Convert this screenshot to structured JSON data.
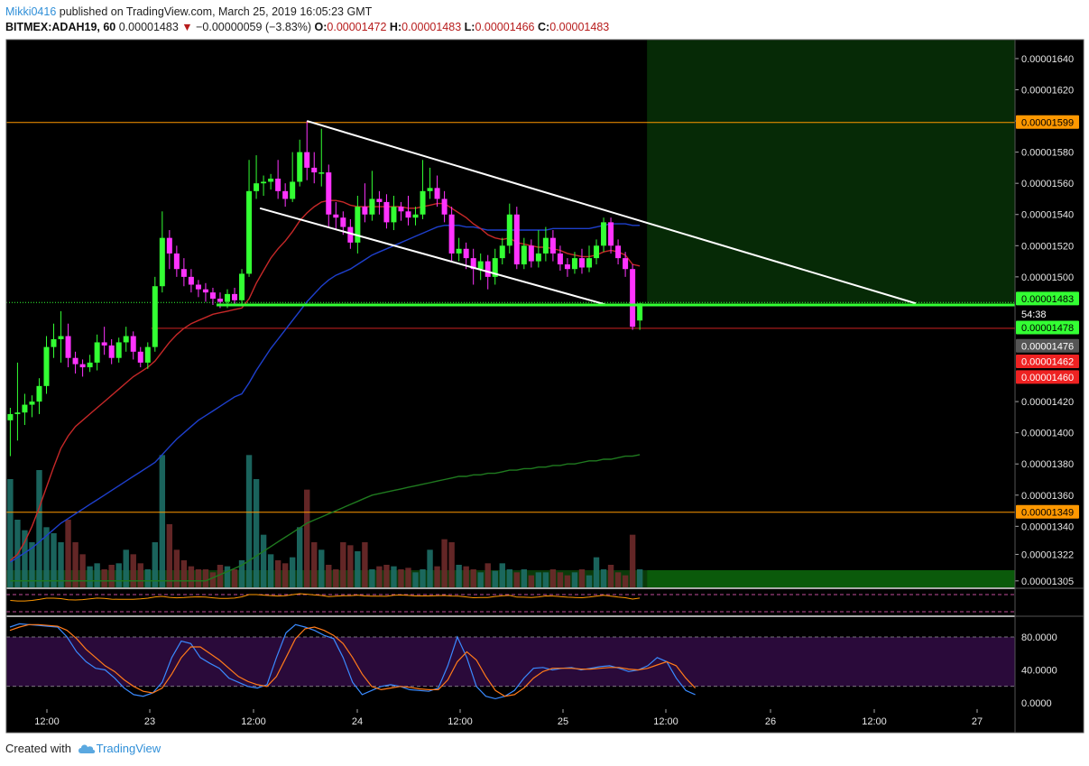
{
  "header": {
    "author": "Mikki0416",
    "published_text": " published on TradingView.com, March 25, 2019 16:05:23 GMT",
    "symbol": "BITMEX:ADAH19, 60",
    "last": "0.00001483",
    "change_arrow": "▼",
    "change": "−0.00000059 (−3.83%)",
    "o_label": "O:",
    "o_value": "0.00001472",
    "h_label": "H:",
    "h_value": "0.00001483",
    "l_label": "L:",
    "l_value": "0.00001466",
    "c_label": "C:",
    "c_value": "0.00001483"
  },
  "footer": {
    "created_text": "Created with",
    "brand": "TradingView",
    "logo_icon": "tradingview-cloud-icon"
  },
  "colors": {
    "bg": "#000000",
    "bull": "#33ff33",
    "bear": "#ff33ff",
    "ema_short": "#c62828",
    "ema_long": "#1e3fcc",
    "ema_slow": "#1f7a1f",
    "level_line": "#ff9800",
    "support_line": "#33ff33",
    "channel_line": "#ffffff",
    "target_zone": "#062a06",
    "stop_zone": "#3a0a0a",
    "stoch_fill": "#2a0a3a"
  },
  "price_axis": {
    "ticks": [
      "0.00001640",
      "0.00001620",
      "0.00001600",
      "0.00001580",
      "0.00001560",
      "0.00001540",
      "0.00001520",
      "0.00001500",
      "0.00001420",
      "0.00001400",
      "0.00001380",
      "0.00001360",
      "0.00001340",
      "0.00001322",
      "0.00001305"
    ],
    "badges": [
      {
        "label": "0.00001599",
        "value": 1.599,
        "bg": "#ff9800",
        "fg": "#000000"
      },
      {
        "label": "0.00001483",
        "value": 1.4858,
        "bg": "#33ff33",
        "fg": "#000000"
      },
      {
        "label": "54:38",
        "value": 1.476,
        "bg": "#000000",
        "fg": "#ffffff"
      },
      {
        "label": "0.00001478",
        "value": 1.4672,
        "bg": "#33ff33",
        "fg": "#000000"
      },
      {
        "label": "0.00001476",
        "value": 1.4555,
        "bg": "#555555",
        "fg": "#ffffff"
      },
      {
        "label": "0.00001462",
        "value": 1.4455,
        "bg": "#ee2222",
        "fg": "#ffffff"
      },
      {
        "label": "0.00001460",
        "value": 1.4355,
        "bg": "#ee2222",
        "fg": "#ffffff"
      },
      {
        "label": "0.00001349",
        "value": 1.349,
        "bg": "#ff9800",
        "fg": "#000000"
      }
    ]
  },
  "stoch_axis": {
    "ticks": [
      "80.0000",
      "40.0000",
      "0.0000"
    ]
  },
  "time_axis": {
    "labels": [
      "12:00",
      "23",
      "12:00",
      "24",
      "12:00",
      "25",
      "12:00",
      "26",
      "12:00",
      "27"
    ]
  },
  "chart_data": {
    "type": "candlestick",
    "symbol": "BITMEX:ADAH19",
    "interval": "60",
    "price_unit": "1e-5",
    "ylim": [
      1.3,
      1.65
    ],
    "price_grid": [
      1.64,
      1.62,
      1.6,
      1.58,
      1.56,
      1.54,
      1.52,
      1.5,
      1.42,
      1.4,
      1.38,
      1.36,
      1.34,
      1.322,
      1.305
    ],
    "time_labels": [
      "12:00",
      "23",
      "12:00",
      "24",
      "12:00",
      "25",
      "12:00",
      "26",
      "12:00",
      "27"
    ],
    "candles": [
      [
        1.408,
        1.412,
        1.385,
        1.416
      ],
      [
        1.412,
        1.413,
        1.395,
        1.445
      ],
      [
        1.413,
        1.418,
        1.405,
        1.425
      ],
      [
        1.418,
        1.42,
        1.41,
        1.424
      ],
      [
        1.42,
        1.43,
        1.412,
        1.435
      ],
      [
        1.43,
        1.455,
        1.425,
        1.462
      ],
      [
        1.455,
        1.46,
        1.448,
        1.47
      ],
      [
        1.46,
        1.462,
        1.445,
        1.478
      ],
      [
        1.462,
        1.448,
        1.442,
        1.47
      ],
      [
        1.448,
        1.444,
        1.438,
        1.452
      ],
      [
        1.444,
        1.442,
        1.436,
        1.447
      ],
      [
        1.442,
        1.445,
        1.439,
        1.45
      ],
      [
        1.445,
        1.458,
        1.44,
        1.463
      ],
      [
        1.458,
        1.456,
        1.45,
        1.468
      ],
      [
        1.456,
        1.448,
        1.444,
        1.46
      ],
      [
        1.448,
        1.458,
        1.445,
        1.461
      ],
      [
        1.458,
        1.462,
        1.452,
        1.468
      ],
      [
        1.462,
        1.452,
        1.447,
        1.465
      ],
      [
        1.452,
        1.445,
        1.442,
        1.455
      ],
      [
        1.445,
        1.455,
        1.441,
        1.458
      ],
      [
        1.455,
        1.494,
        1.452,
        1.5
      ],
      [
        1.494,
        1.525,
        1.49,
        1.542
      ],
      [
        1.525,
        1.515,
        1.505,
        1.53
      ],
      [
        1.515,
        1.505,
        1.5,
        1.52
      ],
      [
        1.505,
        1.5,
        1.494,
        1.512
      ],
      [
        1.5,
        1.495,
        1.49,
        1.505
      ],
      [
        1.495,
        1.492,
        1.487,
        1.498
      ],
      [
        1.492,
        1.49,
        1.484,
        1.496
      ],
      [
        1.49,
        1.486,
        1.482,
        1.493
      ],
      [
        1.486,
        1.484,
        1.48,
        1.49
      ],
      [
        1.484,
        1.489,
        1.48,
        1.492
      ],
      [
        1.489,
        1.485,
        1.482,
        1.493
      ],
      [
        1.485,
        1.502,
        1.482,
        1.505
      ],
      [
        1.502,
        1.555,
        1.5,
        1.575
      ],
      [
        1.555,
        1.56,
        1.55,
        1.578
      ],
      [
        1.56,
        1.561,
        1.552,
        1.565
      ],
      [
        1.561,
        1.563,
        1.556,
        1.566
      ],
      [
        1.563,
        1.555,
        1.55,
        1.575
      ],
      [
        1.555,
        1.55,
        1.545,
        1.56
      ],
      [
        1.55,
        1.561,
        1.548,
        1.58
      ],
      [
        1.561,
        1.58,
        1.558,
        1.588
      ],
      [
        1.58,
        1.57,
        1.562,
        1.6
      ],
      [
        1.57,
        1.567,
        1.56,
        1.58
      ],
      [
        1.567,
        1.567,
        1.558,
        1.595
      ],
      [
        1.567,
        1.54,
        1.532,
        1.572
      ],
      [
        1.54,
        1.538,
        1.53,
        1.548
      ],
      [
        1.538,
        1.532,
        1.527,
        1.542
      ],
      [
        1.532,
        1.522,
        1.518,
        1.537
      ],
      [
        1.522,
        1.545,
        1.515,
        1.552
      ],
      [
        1.545,
        1.54,
        1.535,
        1.56
      ],
      [
        1.54,
        1.55,
        1.536,
        1.568
      ],
      [
        1.55,
        1.548,
        1.54,
        1.555
      ],
      [
        1.548,
        1.535,
        1.531,
        1.553
      ],
      [
        1.535,
        1.545,
        1.53,
        1.552
      ],
      [
        1.545,
        1.542,
        1.536,
        1.548
      ],
      [
        1.542,
        1.538,
        1.533,
        1.552
      ],
      [
        1.538,
        1.54,
        1.533,
        1.545
      ],
      [
        1.54,
        1.555,
        1.537,
        1.575
      ],
      [
        1.555,
        1.557,
        1.55,
        1.57
      ],
      [
        1.557,
        1.55,
        1.545,
        1.565
      ],
      [
        1.55,
        1.54,
        1.535,
        1.555
      ],
      [
        1.54,
        1.515,
        1.51,
        1.545
      ],
      [
        1.515,
        1.518,
        1.51,
        1.525
      ],
      [
        1.518,
        1.512,
        1.505,
        1.522
      ],
      [
        1.512,
        1.505,
        1.495,
        1.518
      ],
      [
        1.505,
        1.51,
        1.498,
        1.515
      ],
      [
        1.51,
        1.5,
        1.492,
        1.514
      ],
      [
        1.5,
        1.512,
        1.495,
        1.518
      ],
      [
        1.512,
        1.52,
        1.508,
        1.525
      ],
      [
        1.52,
        1.54,
        1.515,
        1.547
      ],
      [
        1.54,
        1.508,
        1.505,
        1.545
      ],
      [
        1.508,
        1.52,
        1.505,
        1.525
      ],
      [
        1.52,
        1.51,
        1.506,
        1.524
      ],
      [
        1.51,
        1.515,
        1.506,
        1.53
      ],
      [
        1.515,
        1.525,
        1.51,
        1.532
      ],
      [
        1.525,
        1.515,
        1.51,
        1.53
      ],
      [
        1.515,
        1.508,
        1.504,
        1.52
      ],
      [
        1.508,
        1.505,
        1.5,
        1.512
      ],
      [
        1.505,
        1.512,
        1.502,
        1.516
      ],
      [
        1.512,
        1.506,
        1.502,
        1.518
      ],
      [
        1.506,
        1.512,
        1.503,
        1.52
      ],
      [
        1.512,
        1.52,
        1.508,
        1.524
      ],
      [
        1.52,
        1.535,
        1.516,
        1.538
      ],
      [
        1.535,
        1.52,
        1.515,
        1.538
      ],
      [
        1.52,
        1.512,
        1.508,
        1.524
      ],
      [
        1.512,
        1.505,
        1.5,
        1.516
      ],
      [
        1.505,
        1.468,
        1.466,
        1.508
      ],
      [
        1.472,
        1.483,
        1.466,
        1.483
      ]
    ],
    "volume": [
      72,
      45,
      38,
      30,
      78,
      40,
      36,
      30,
      45,
      30,
      22,
      14,
      16,
      12,
      15,
      16,
      25,
      22,
      16,
      12,
      30,
      88,
      42,
      25,
      18,
      14,
      12,
      12,
      10,
      15,
      14,
      12,
      18,
      88,
      72,
      35,
      22,
      18,
      16,
      20,
      40,
      65,
      30,
      25,
      15,
      12,
      30,
      28,
      24,
      30,
      12,
      14,
      15,
      14,
      12,
      13,
      10,
      12,
      25,
      14,
      32,
      30,
      15,
      14,
      12,
      10,
      16,
      11,
      16,
      12,
      10,
      12,
      8,
      10,
      10,
      12,
      10,
      8,
      10,
      12,
      8,
      20,
      12,
      15,
      10,
      8,
      35,
      12
    ],
    "volume_colors": [
      "#1d6e66",
      "#1d6e66",
      "#1d6e66",
      "#6e2a2a",
      "#1d6e66",
      "#1d6e66",
      "#6e2a2a",
      "#6e2a2a"
    ],
    "volume_ma": [
      40,
      41,
      42,
      42,
      44,
      44,
      44,
      43,
      43,
      42,
      41,
      40,
      38,
      37,
      36,
      35,
      34,
      33,
      32,
      31,
      31,
      35,
      36,
      35,
      34,
      33,
      32,
      31,
      30,
      29,
      28,
      27,
      27,
      31,
      34,
      34,
      33,
      32,
      31,
      31,
      31,
      33,
      32,
      31,
      30,
      29,
      29,
      28,
      28,
      28,
      27,
      26,
      26,
      25,
      24,
      24,
      23,
      23,
      23,
      22,
      22,
      22,
      21,
      20,
      20,
      19,
      19,
      18,
      18,
      18,
      17,
      17,
      16,
      16,
      16,
      15,
      15,
      15,
      14,
      14,
      14,
      14,
      14,
      14,
      14,
      13,
      14,
      14
    ],
    "ema_short": [
      1.318,
      1.322,
      1.33,
      1.34,
      1.352,
      1.365,
      1.378,
      1.39,
      1.398,
      1.404,
      1.408,
      1.412,
      1.416,
      1.42,
      1.424,
      1.428,
      1.432,
      1.436,
      1.439,
      1.442,
      1.446,
      1.452,
      1.458,
      1.463,
      1.467,
      1.47,
      1.472,
      1.474,
      1.476,
      1.477,
      1.478,
      1.479,
      1.48,
      1.486,
      1.496,
      1.504,
      1.512,
      1.518,
      1.523,
      1.529,
      1.536,
      1.541,
      1.545,
      1.548,
      1.549,
      1.549,
      1.548,
      1.546,
      1.545,
      1.545,
      1.545,
      1.545,
      1.545,
      1.545,
      1.545,
      1.544,
      1.544,
      1.545,
      1.546,
      1.547,
      1.547,
      1.544,
      1.541,
      1.538,
      1.534,
      1.531,
      1.527,
      1.525,
      1.524,
      1.525,
      1.522,
      1.521,
      1.52,
      1.519,
      1.519,
      1.518,
      1.517,
      1.515,
      1.514,
      1.513,
      1.513,
      1.514,
      1.516,
      1.517,
      1.516,
      1.514,
      1.508,
      1.507
    ],
    "ema_long": [
      1.317,
      1.32,
      1.323,
      1.326,
      1.33,
      1.334,
      1.338,
      1.342,
      1.345,
      1.348,
      1.351,
      1.354,
      1.357,
      1.36,
      1.363,
      1.366,
      1.369,
      1.372,
      1.375,
      1.378,
      1.381,
      1.386,
      1.391,
      1.396,
      1.4,
      1.404,
      1.408,
      1.411,
      1.414,
      1.417,
      1.42,
      1.423,
      1.425,
      1.432,
      1.44,
      1.447,
      1.454,
      1.46,
      1.466,
      1.472,
      1.478,
      1.484,
      1.489,
      1.494,
      1.498,
      1.501,
      1.503,
      1.505,
      1.508,
      1.511,
      1.514,
      1.516,
      1.518,
      1.52,
      1.522,
      1.524,
      1.526,
      1.528,
      1.53,
      1.532,
      1.533,
      1.533,
      1.533,
      1.532,
      1.532,
      1.531,
      1.53,
      1.53,
      1.53,
      1.53,
      1.53,
      1.53,
      1.53,
      1.53,
      1.53,
      1.531,
      1.531,
      1.531,
      1.531,
      1.531,
      1.531,
      1.532,
      1.533,
      1.534,
      1.534,
      1.534,
      1.533,
      1.533
    ],
    "ema_slow": [
      1.305,
      1.305,
      1.305,
      1.305,
      1.305,
      1.305,
      1.305,
      1.305,
      1.305,
      1.305,
      1.305,
      1.305,
      1.305,
      1.305,
      1.305,
      1.305,
      1.305,
      1.305,
      1.305,
      1.305,
      1.305,
      1.305,
      1.305,
      1.305,
      1.305,
      1.305,
      1.305,
      1.305,
      1.307,
      1.309,
      1.311,
      1.313,
      1.315,
      1.318,
      1.321,
      1.324,
      1.327,
      1.33,
      1.333,
      1.336,
      1.339,
      1.342,
      1.344,
      1.346,
      1.348,
      1.35,
      1.352,
      1.354,
      1.356,
      1.358,
      1.36,
      1.361,
      1.362,
      1.363,
      1.364,
      1.365,
      1.366,
      1.367,
      1.368,
      1.369,
      1.37,
      1.371,
      1.372,
      1.372,
      1.373,
      1.373,
      1.374,
      1.374,
      1.375,
      1.376,
      1.376,
      1.377,
      1.377,
      1.378,
      1.378,
      1.379,
      1.379,
      1.38,
      1.38,
      1.381,
      1.382,
      1.382,
      1.383,
      1.383,
      1.384,
      1.385,
      1.385,
      1.386
    ],
    "stoch_k": [
      92,
      96,
      95,
      94,
      93,
      92,
      80,
      62,
      50,
      42,
      40,
      30,
      18,
      10,
      8,
      12,
      25,
      55,
      75,
      72,
      55,
      48,
      42,
      30,
      25,
      20,
      18,
      22,
      55,
      85,
      95,
      92,
      88,
      82,
      78,
      55,
      25,
      10,
      15,
      20,
      22,
      20,
      16,
      15,
      14,
      18,
      45,
      80,
      55,
      20,
      8,
      5,
      8,
      15,
      30,
      42,
      43,
      40,
      42,
      43,
      40,
      42,
      44,
      45,
      42,
      38,
      40,
      45,
      55,
      50,
      30,
      15,
      10
    ],
    "stoch_d": [
      88,
      92,
      95,
      95,
      94,
      93,
      88,
      78,
      65,
      55,
      45,
      38,
      28,
      20,
      14,
      12,
      18,
      35,
      55,
      68,
      68,
      60,
      52,
      42,
      32,
      26,
      22,
      20,
      32,
      55,
      78,
      90,
      92,
      88,
      82,
      72,
      55,
      35,
      20,
      16,
      18,
      20,
      19,
      17,
      16,
      16,
      28,
      50,
      62,
      52,
      32,
      15,
      8,
      10,
      18,
      30,
      38,
      42,
      42,
      42,
      41,
      41,
      42,
      43,
      43,
      41,
      40,
      42,
      46,
      50,
      45,
      30,
      18
    ],
    "channel_upper": {
      "from": {
        "bar": 41,
        "price": 1.6
      },
      "to": {
        "date_label": "26 + ~18h",
        "price": 1.483
      }
    },
    "channel_lower": {
      "from": {
        "bar": 35,
        "price": 1.544
      },
      "to": {
        "bar": 75,
        "price": 1.482
      }
    },
    "support_price": 1.482,
    "stop_price": 1.467,
    "resistance_level": 1.599,
    "lower_level": 1.349,
    "entry_price": 1.483,
    "target_zone": {
      "from_price": 1.483,
      "to_price": 1.65
    },
    "stop_zone": {
      "from_price": 1.467,
      "to_price": 1.483
    },
    "stoch_levels": [
      80,
      20
    ],
    "rsi_level_lines": [
      1,
      0
    ]
  }
}
